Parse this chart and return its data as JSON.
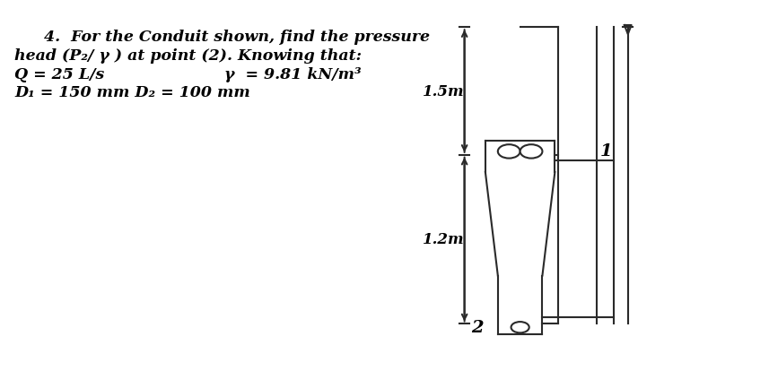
{
  "title_line1": "4.  For the Conduit shown, find the pressure",
  "title_line2": "head (P₂/ γ ) at point (2). Knowing that:",
  "title_line3_left": "Q = 25 L/s",
  "title_line3_right": "γ  = 9.81 kN/m³",
  "title_line4": "D₁ = 150 mm D₂ = 100 mm",
  "label_15m": "1.5m",
  "label_12m": "1.2m",
  "label_1": "1",
  "label_2": "2",
  "bg_color": "#ffffff",
  "line_color": "#2a2a2a",
  "text_color": "#000000"
}
